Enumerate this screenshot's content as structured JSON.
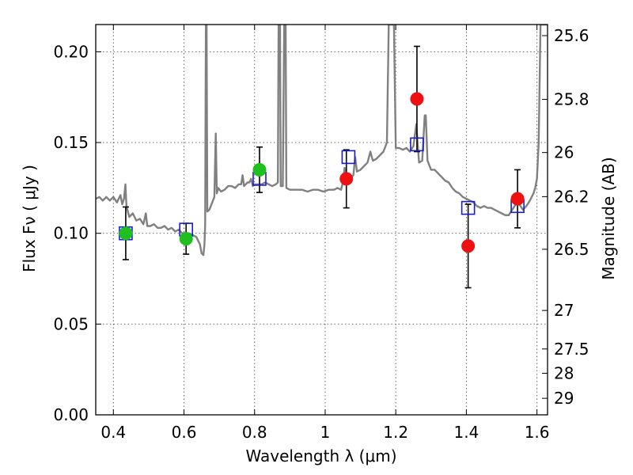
{
  "chart_data": {
    "type": "scatter",
    "title": "",
    "xlabel": "Wavelength  λ (μm)",
    "ylabel": "Flux  Fν  ( μJy )",
    "y2label": "Magnitude (AB)",
    "xlim": [
      0.35,
      1.63
    ],
    "ylim": [
      0.0,
      0.215
    ],
    "grid": true,
    "x_ticks": [
      0.4,
      0.6,
      0.8,
      1.0,
      1.2,
      1.4,
      1.6
    ],
    "x_tick_labels": [
      "0.4",
      "0.6",
      "0.8",
      "1",
      "1.2",
      "1.4",
      "1.6"
    ],
    "y_ticks": [
      0.0,
      0.05,
      0.1,
      0.15,
      0.2
    ],
    "y_tick_labels": [
      "0.00",
      "0.05",
      "0.10",
      "0.15",
      "0.20"
    ],
    "y2_ticks": [
      {
        "label": "25.6",
        "flux": 0.2089
      },
      {
        "label": "25.8",
        "flux": 0.1738
      },
      {
        "label": "26",
        "flux": 0.1445
      },
      {
        "label": "26.2",
        "flux": 0.1202
      },
      {
        "label": "26.5",
        "flux": 0.0912
      },
      {
        "label": "27",
        "flux": 0.0575
      },
      {
        "label": "27.5",
        "flux": 0.0363
      },
      {
        "label": "28",
        "flux": 0.0229
      },
      {
        "label": "29",
        "flux": 0.0091
      }
    ],
    "series": [
      {
        "marker": "circle",
        "color": "#1fbf1f",
        "points": [
          {
            "x": 0.435,
            "y": 0.1,
            "yerr": 0.0145
          },
          {
            "x": 0.606,
            "y": 0.097,
            "yerr": 0.0085
          },
          {
            "x": 0.814,
            "y": 0.135,
            "yerr": 0.0125
          }
        ]
      },
      {
        "marker": "circle",
        "color": "#ee1111",
        "points": [
          {
            "x": 1.06,
            "y": 0.13,
            "yerr": 0.016
          },
          {
            "x": 1.26,
            "y": 0.174,
            "yerr": 0.029
          },
          {
            "x": 1.405,
            "y": 0.093,
            "yerr": 0.023
          },
          {
            "x": 1.545,
            "y": 0.119,
            "yerr": 0.016
          }
        ]
      },
      {
        "marker": "open-square",
        "color": "#1a1ad6",
        "points": [
          {
            "x": 0.435,
            "y": 0.1
          },
          {
            "x": 0.606,
            "y": 0.102
          },
          {
            "x": 0.814,
            "y": 0.13
          },
          {
            "x": 1.066,
            "y": 0.142
          },
          {
            "x": 1.26,
            "y": 0.149
          },
          {
            "x": 1.405,
            "y": 0.114
          },
          {
            "x": 1.545,
            "y": 0.115
          }
        ]
      },
      {
        "marker": "line",
        "color": "#808080",
        "points": [
          [
            0.35,
            0.119
          ],
          [
            0.36,
            0.12
          ],
          [
            0.37,
            0.118
          ],
          [
            0.38,
            0.12
          ],
          [
            0.39,
            0.118
          ],
          [
            0.4,
            0.12
          ],
          [
            0.41,
            0.117
          ],
          [
            0.42,
            0.121
          ],
          [
            0.425,
            0.116
          ],
          [
            0.43,
            0.119
          ],
          [
            0.434,
            0.127
          ],
          [
            0.437,
            0.115
          ],
          [
            0.445,
            0.109
          ],
          [
            0.455,
            0.111
          ],
          [
            0.465,
            0.107
          ],
          [
            0.475,
            0.108
          ],
          [
            0.485,
            0.105
          ],
          [
            0.492,
            0.111
          ],
          [
            0.496,
            0.104
          ],
          [
            0.505,
            0.104
          ],
          [
            0.515,
            0.105
          ],
          [
            0.525,
            0.103
          ],
          [
            0.535,
            0.103
          ],
          [
            0.545,
            0.104
          ],
          [
            0.555,
            0.102
          ],
          [
            0.565,
            0.103
          ],
          [
            0.575,
            0.101
          ],
          [
            0.585,
            0.102
          ],
          [
            0.595,
            0.1
          ],
          [
            0.605,
            0.1
          ],
          [
            0.615,
            0.1
          ],
          [
            0.625,
            0.099
          ],
          [
            0.635,
            0.098
          ],
          [
            0.645,
            0.094
          ],
          [
            0.65,
            0.089
          ],
          [
            0.655,
            0.088
          ],
          [
            0.658,
            0.094
          ],
          [
            0.66,
            0.105
          ],
          [
            0.662,
            0.215
          ],
          [
            0.664,
            0.215
          ],
          [
            0.666,
            0.112
          ],
          [
            0.672,
            0.113
          ],
          [
            0.68,
            0.117
          ],
          [
            0.686,
            0.12
          ],
          [
            0.69,
            0.155
          ],
          [
            0.693,
            0.122
          ],
          [
            0.697,
            0.125
          ],
          [
            0.705,
            0.123
          ],
          [
            0.715,
            0.124
          ],
          [
            0.725,
            0.126
          ],
          [
            0.735,
            0.126
          ],
          [
            0.745,
            0.125
          ],
          [
            0.755,
            0.127
          ],
          [
            0.762,
            0.127
          ],
          [
            0.766,
            0.132
          ],
          [
            0.77,
            0.126
          ],
          [
            0.78,
            0.128
          ],
          [
            0.785,
            0.128
          ],
          [
            0.79,
            0.13
          ],
          [
            0.795,
            0.126
          ],
          [
            0.8,
            0.127
          ],
          [
            0.81,
            0.127
          ],
          [
            0.82,
            0.127
          ],
          [
            0.83,
            0.128
          ],
          [
            0.84,
            0.127
          ],
          [
            0.85,
            0.126
          ],
          [
            0.86,
            0.127
          ],
          [
            0.866,
            0.128
          ],
          [
            0.868,
            0.215
          ],
          [
            0.872,
            0.215
          ],
          [
            0.874,
            0.126
          ],
          [
            0.88,
            0.126
          ],
          [
            0.884,
            0.215
          ],
          [
            0.888,
            0.215
          ],
          [
            0.89,
            0.125
          ],
          [
            0.9,
            0.124
          ],
          [
            0.91,
            0.124
          ],
          [
            0.92,
            0.124
          ],
          [
            0.935,
            0.124
          ],
          [
            0.95,
            0.123
          ],
          [
            0.965,
            0.124
          ],
          [
            0.98,
            0.124
          ],
          [
            0.995,
            0.123
          ],
          [
            1.01,
            0.124
          ],
          [
            1.025,
            0.124
          ],
          [
            1.035,
            0.125
          ],
          [
            1.045,
            0.124
          ],
          [
            1.05,
            0.128
          ],
          [
            1.055,
            0.136
          ],
          [
            1.06,
            0.131
          ],
          [
            1.07,
            0.131
          ],
          [
            1.08,
            0.132
          ],
          [
            1.085,
            0.142
          ],
          [
            1.09,
            0.134
          ],
          [
            1.1,
            0.135
          ],
          [
            1.11,
            0.137
          ],
          [
            1.12,
            0.139
          ],
          [
            1.128,
            0.145
          ],
          [
            1.135,
            0.14
          ],
          [
            1.145,
            0.141
          ],
          [
            1.155,
            0.143
          ],
          [
            1.165,
            0.145
          ],
          [
            1.175,
            0.15
          ],
          [
            1.18,
            0.215
          ],
          [
            1.195,
            0.215
          ],
          [
            1.2,
            0.147
          ],
          [
            1.21,
            0.147
          ],
          [
            1.22,
            0.146
          ],
          [
            1.23,
            0.147
          ],
          [
            1.24,
            0.145
          ],
          [
            1.25,
            0.148
          ],
          [
            1.258,
            0.16
          ],
          [
            1.266,
            0.139
          ],
          [
            1.275,
            0.14
          ],
          [
            1.282,
            0.165
          ],
          [
            1.285,
            0.165
          ],
          [
            1.29,
            0.14
          ],
          [
            1.3,
            0.135
          ],
          [
            1.31,
            0.135
          ],
          [
            1.32,
            0.133
          ],
          [
            1.33,
            0.131
          ],
          [
            1.34,
            0.129
          ],
          [
            1.35,
            0.128
          ],
          [
            1.36,
            0.125
          ],
          [
            1.37,
            0.123
          ],
          [
            1.38,
            0.122
          ],
          [
            1.39,
            0.12
          ],
          [
            1.4,
            0.119
          ],
          [
            1.41,
            0.118
          ],
          [
            1.42,
            0.117
          ],
          [
            1.43,
            0.115
          ],
          [
            1.44,
            0.114
          ],
          [
            1.45,
            0.115
          ],
          [
            1.46,
            0.114
          ],
          [
            1.47,
            0.114
          ],
          [
            1.48,
            0.113
          ],
          [
            1.49,
            0.112
          ],
          [
            1.5,
            0.111
          ],
          [
            1.51,
            0.11
          ],
          [
            1.52,
            0.11
          ],
          [
            1.53,
            0.113
          ],
          [
            1.54,
            0.116
          ],
          [
            1.55,
            0.116
          ],
          [
            1.56,
            0.113
          ],
          [
            1.57,
            0.115
          ],
          [
            1.58,
            0.118
          ],
          [
            1.59,
            0.122
          ],
          [
            1.595,
            0.125
          ],
          [
            1.6,
            0.13
          ],
          [
            1.605,
            0.15
          ],
          [
            1.61,
            0.215
          ],
          [
            1.63,
            0.215
          ]
        ]
      }
    ]
  }
}
